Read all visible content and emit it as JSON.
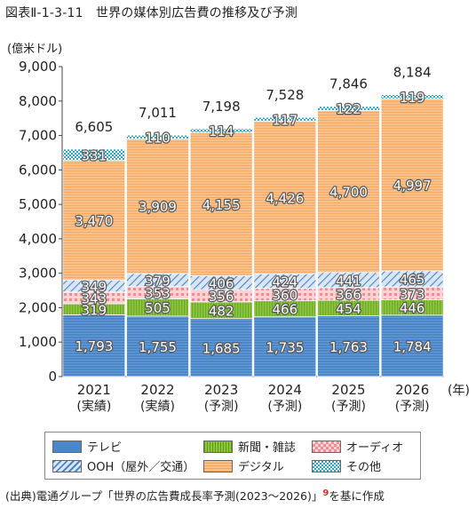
{
  "title": "図表Ⅱ-1-3-11　世界の媒体別広告費の推移及び予測",
  "y_unit": "(億米ドル)",
  "x_unit": "(年)",
  "source": "(出典)電通グループ「世界の広告費成長率予測(2023～2026)」",
  "source_ref": "9",
  "source_suffix": "を基に作成",
  "colors": {
    "tv": "#4a86c8",
    "ooh": "#8fb0dc",
    "newspaper": "#8cc63f",
    "audio": "#f4a9ad",
    "digital": "#f9b97a",
    "other": "#5fc3d6"
  },
  "chart_data": {
    "type": "bar",
    "stacked": true,
    "categories": [
      "2021",
      "2022",
      "2023",
      "2024",
      "2025",
      "2026"
    ],
    "category_sublabels": [
      "(実績)",
      "(実績)",
      "(予測)",
      "(予測)",
      "(予測)",
      "(予測)"
    ],
    "ylim": [
      0,
      9000
    ],
    "yticks": [
      0,
      1000,
      2000,
      3000,
      4000,
      5000,
      6000,
      7000,
      8000,
      9000
    ],
    "ytick_labels": [
      "0",
      "1,000",
      "2,000",
      "3,000",
      "4,000",
      "5,000",
      "6,000",
      "7,000",
      "8,000",
      "9,000"
    ],
    "grid": false,
    "legend_position": "bottom",
    "series": [
      {
        "key": "tv",
        "name": "テレビ",
        "values": [
          1793,
          1755,
          1685,
          1735,
          1763,
          1784
        ],
        "labels": [
          "1,793",
          "1,755",
          "1,685",
          "1,735",
          "1,763",
          "1,784"
        ]
      },
      {
        "key": "newspaper",
        "name": "新聞・雑誌",
        "values": [
          319,
          505,
          482,
          466,
          454,
          446
        ],
        "labels": [
          "319",
          "505",
          "482",
          "466",
          "454",
          "446"
        ]
      },
      {
        "key": "audio",
        "name": "オーディオ",
        "values": [
          343,
          353,
          356,
          360,
          366,
          373
        ],
        "labels": [
          "343",
          "353",
          "356",
          "360",
          "366",
          "373"
        ]
      },
      {
        "key": "ooh",
        "name": "OOH（屋外／交通）",
        "values": [
          349,
          379,
          406,
          424,
          441,
          465
        ],
        "labels": [
          "349",
          "379",
          "406",
          "424",
          "441",
          "465"
        ]
      },
      {
        "key": "digital",
        "name": "デジタル",
        "values": [
          3470,
          3909,
          4155,
          4426,
          4700,
          4997
        ],
        "labels": [
          "3,470",
          "3,909",
          "4,155",
          "4,426",
          "4,700",
          "4,997"
        ]
      },
      {
        "key": "other",
        "name": "その他",
        "values": [
          331,
          110,
          114,
          117,
          122,
          119
        ],
        "labels": [
          "331",
          "110",
          "114",
          "117",
          "122",
          "119"
        ]
      }
    ],
    "totals": [
      6605,
      7011,
      7198,
      7528,
      7846,
      8184
    ],
    "total_labels": [
      "6,605",
      "7,011",
      "7,198",
      "7,528",
      "7,846",
      "8,184"
    ]
  },
  "legend_items": [
    {
      "key": "tv",
      "label": "テレビ"
    },
    {
      "key": "newspaper",
      "label": "新聞・雑誌"
    },
    {
      "key": "audio",
      "label": "オーディオ"
    },
    {
      "key": "ooh",
      "label": "OOH（屋外／交通）"
    },
    {
      "key": "digital",
      "label": "デジタル"
    },
    {
      "key": "other",
      "label": "その他"
    }
  ]
}
